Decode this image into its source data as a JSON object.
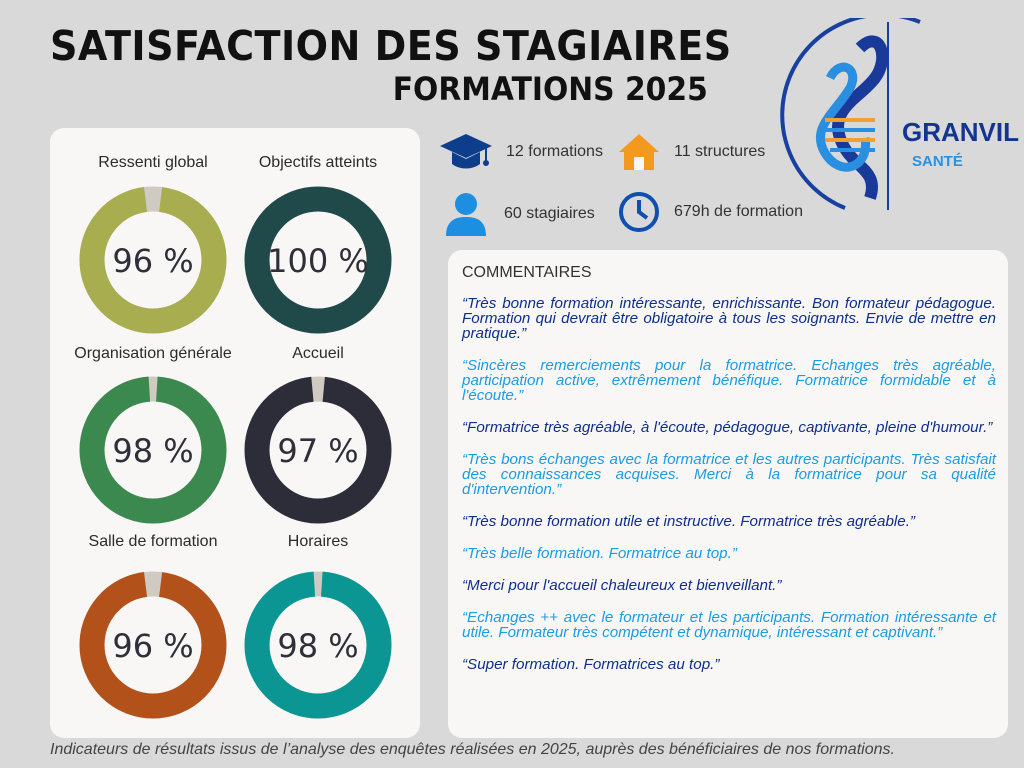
{
  "header": {
    "title": "SATISFACTION DES STAGIAIRES",
    "subtitle": "FORMATIONS 2025"
  },
  "logo": {
    "name": "GRANVILLE",
    "sub": "SANTÉ"
  },
  "stats": [
    {
      "icon": "graduation-cap-icon",
      "label": "12 formations"
    },
    {
      "icon": "house-icon",
      "label": "11 structures"
    },
    {
      "icon": "person-icon",
      "label": "60 stagiaires"
    },
    {
      "icon": "clock-icon",
      "label": "679h de formation"
    }
  ],
  "chart_data": {
    "type": "pie",
    "variant": "donut",
    "categories": [
      "Ressenti global",
      "Objectifs atteints",
      "Organisation générale",
      "Accueil",
      "Salle de formation",
      "Horaires"
    ],
    "values": [
      96,
      100,
      98,
      97,
      96,
      98
    ],
    "labels": [
      "96 %",
      "100 %",
      "98 %",
      "97 %",
      "96 %",
      "98 %"
    ],
    "colors": [
      "#a8ad4f",
      "#1f4a49",
      "#3c8950",
      "#2d2d3a",
      "#b3511b",
      "#0b9693"
    ],
    "remainder_color": "#cfcbc2"
  },
  "comments": {
    "title": "COMMENTAIRES",
    "items": [
      "“Très bonne formation intéressante, enrichissante. Bon formateur pédagogue. Formation qui devrait être obligatoire à tous les soignants. Envie de mettre en pratique.”",
      "“Sincères remerciements pour la formatrice. Echanges très agréable, participation active, extrêmement bénéfique. Formatrice formidable et à l'écoute.”",
      "“Formatrice très agréable, à l'écoute, pédagogue, captivante, pleine d'humour.”",
      "“Très bons échanges avec la formatrice et les autres participants. Très satisfait des connaissances acquises. Merci à la formatrice pour sa qualité d'intervention.”",
      "“Très bonne formation utile et instructive. Formatrice très agréable.”",
      "“Très belle formation. Formatrice au top.”",
      "“Merci pour l'accueil chaleureux et bienveillant.”",
      "“Echanges ++ avec le formateur et les participants. Formation intéressante et utile. Formateur très compétent et dynamique, intéressant et captivant.”",
      "“Super formation. Formatrices au top.”"
    ]
  },
  "footer": "Indicateurs de résultats issus de l’analyse des enquêtes réalisées en 2025, auprès des bénéficiaires de nos formations."
}
